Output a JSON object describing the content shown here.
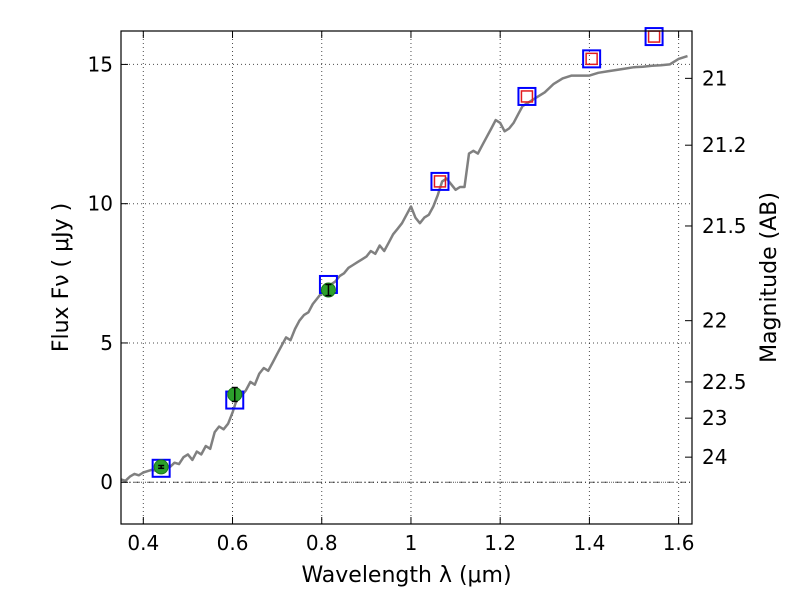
{
  "chart_data": {
    "type": "line",
    "xlabel": "Wavelength  λ (μm)",
    "ylabel": "Flux  Fν  ( μJy )",
    "y2label": "Magnitude (AB)",
    "xlim": [
      0.35,
      1.63
    ],
    "ylim": [
      -1.5,
      16.2
    ],
    "grid": true,
    "x_ticks": [
      0.4,
      0.6,
      0.8,
      1.0,
      1.2,
      1.4,
      1.6
    ],
    "x_tick_labels": [
      "0.4",
      "0.6",
      "0.8",
      "1",
      "1.2",
      "1.4",
      "1.6"
    ],
    "y_ticks": [
      0,
      5,
      10,
      15
    ],
    "y_tick_labels": [
      "0",
      "5",
      "10",
      "15"
    ],
    "right_ticks": [
      {
        "label": "21",
        "flux": 14.5
      },
      {
        "label": "21.2",
        "flux": 12.1
      },
      {
        "label": "21.5",
        "flux": 9.2
      },
      {
        "label": "22",
        "flux": 5.8
      },
      {
        "label": "22.5",
        "flux": 3.6
      },
      {
        "label": "23",
        "flux": 2.3
      },
      {
        "label": "24",
        "flux": 0.9
      }
    ],
    "model_color": "#808080",
    "observed_color": "#2ca02c",
    "synthetic_outer_color": "#0000ff",
    "synthetic_inner_color": "#e31a1c",
    "model_spectrum": {
      "x": [
        0.35,
        0.36,
        0.37,
        0.38,
        0.39,
        0.4,
        0.41,
        0.42,
        0.43,
        0.44,
        0.45,
        0.46,
        0.47,
        0.48,
        0.49,
        0.5,
        0.51,
        0.52,
        0.53,
        0.54,
        0.55,
        0.56,
        0.57,
        0.58,
        0.59,
        0.6,
        0.61,
        0.62,
        0.63,
        0.64,
        0.65,
        0.66,
        0.67,
        0.68,
        0.69,
        0.7,
        0.71,
        0.72,
        0.73,
        0.74,
        0.75,
        0.76,
        0.77,
        0.78,
        0.79,
        0.8,
        0.81,
        0.82,
        0.83,
        0.84,
        0.85,
        0.86,
        0.87,
        0.88,
        0.89,
        0.9,
        0.91,
        0.92,
        0.93,
        0.94,
        0.95,
        0.96,
        0.97,
        0.98,
        0.99,
        1.0,
        1.01,
        1.02,
        1.03,
        1.04,
        1.05,
        1.06,
        1.07,
        1.08,
        1.09,
        1.1,
        1.11,
        1.12,
        1.13,
        1.14,
        1.15,
        1.16,
        1.17,
        1.18,
        1.19,
        1.2,
        1.21,
        1.22,
        1.23,
        1.24,
        1.25,
        1.26,
        1.28,
        1.3,
        1.32,
        1.34,
        1.36,
        1.38,
        1.4,
        1.42,
        1.44,
        1.46,
        1.48,
        1.5,
        1.52,
        1.54,
        1.56,
        1.58,
        1.6,
        1.62
      ],
      "y": [
        0.1,
        0.05,
        0.2,
        0.3,
        0.25,
        0.35,
        0.4,
        0.45,
        0.4,
        0.5,
        0.6,
        0.55,
        0.7,
        0.65,
        0.9,
        1.0,
        0.8,
        1.1,
        1.0,
        1.3,
        1.2,
        1.8,
        2.0,
        1.9,
        2.1,
        2.5,
        3.0,
        3.1,
        3.3,
        3.6,
        3.5,
        3.9,
        4.1,
        4.0,
        4.3,
        4.6,
        4.9,
        5.2,
        5.1,
        5.5,
        5.8,
        6.0,
        6.1,
        6.4,
        6.6,
        6.8,
        6.9,
        7.1,
        7.2,
        7.4,
        7.5,
        7.7,
        7.8,
        7.9,
        8.0,
        8.1,
        8.3,
        8.2,
        8.5,
        8.3,
        8.6,
        8.9,
        9.1,
        9.3,
        9.6,
        9.9,
        9.5,
        9.3,
        9.5,
        9.6,
        9.9,
        10.3,
        10.8,
        10.9,
        10.7,
        10.5,
        10.6,
        10.6,
        11.8,
        11.9,
        11.8,
        12.1,
        12.4,
        12.7,
        13.0,
        12.9,
        12.6,
        12.7,
        12.9,
        13.2,
        13.5,
        13.6,
        13.8,
        14.0,
        14.3,
        14.5,
        14.6,
        14.6,
        14.6,
        14.7,
        14.75,
        14.8,
        14.85,
        14.9,
        14.92,
        14.95,
        14.97,
        15.0,
        15.2,
        15.3
      ]
    },
    "observed_points": {
      "x": [
        0.44,
        0.605,
        0.815
      ],
      "y": [
        0.55,
        3.15,
        6.9
      ],
      "yerr": [
        0.05,
        0.25,
        0.2
      ]
    },
    "synthetic_points": {
      "x": [
        0.44,
        0.605,
        0.815,
        1.065,
        1.26,
        1.405,
        1.545
      ],
      "y": [
        0.5,
        2.95,
        7.1,
        10.8,
        13.85,
        15.2,
        16.0
      ],
      "inner_marker": [
        false,
        false,
        false,
        true,
        true,
        true,
        true
      ]
    }
  }
}
